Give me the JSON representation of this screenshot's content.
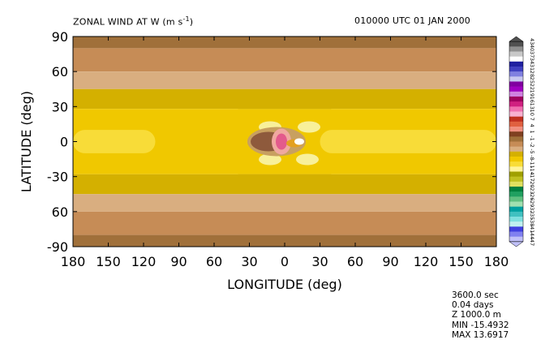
{
  "header": {
    "title": "ZONAL WIND AT W (m s",
    "title_exp": "-1",
    "title_close": ")",
    "time": "010000 UTC    01 JAN 2000"
  },
  "chart_data": {
    "type": "heatmap",
    "title": "ZONAL WIND AT W (m s-1)",
    "xlabel": "LONGITUDE (deg)",
    "ylabel": "LATITUDE (deg)",
    "xlim": [
      -180,
      180
    ],
    "ylim": [
      -90,
      90
    ],
    "xticks": [
      -180,
      -150,
      -120,
      -90,
      -60,
      -30,
      0,
      30,
      60,
      90,
      120,
      150,
      180
    ],
    "xtick_labels": [
      "180",
      "150",
      "120",
      "90",
      "60",
      "30",
      "0",
      "30",
      "60",
      "90",
      "120",
      "150",
      "180"
    ],
    "yticks": [
      90,
      60,
      30,
      0,
      -30,
      -60,
      -90
    ],
    "ytick_labels": [
      "90",
      "60",
      "30",
      "0",
      "-30",
      "60",
      "-90"
    ],
    "zonal_bands": [
      {
        "lat": [
          80,
          90
        ],
        "color": "#a0703a"
      },
      {
        "lat": [
          60,
          80
        ],
        "color": "#c68c56"
      },
      {
        "lat": [
          45,
          60
        ],
        "color": "#d9ae80"
      },
      {
        "lat": [
          28,
          45
        ],
        "color": "#d4b000"
      },
      {
        "lat": [
          -28,
          28
        ],
        "color": "#f0c800"
      },
      {
        "lat": [
          -45,
          -28
        ],
        "color": "#d4b000"
      },
      {
        "lat": [
          -60,
          -45
        ],
        "color": "#d9ae80"
      },
      {
        "lat": [
          -80,
          -60
        ],
        "color": "#c68c56"
      },
      {
        "lat": [
          -90,
          -80
        ],
        "color": "#a0703a"
      }
    ],
    "equatorial_band": {
      "color": "#f8dc38",
      "lat": [
        -10,
        10
      ],
      "lon_ranges": [
        [
          -180,
          -110
        ],
        [
          30,
          180
        ]
      ]
    },
    "feature": {
      "center_lon": 0,
      "center_lat": 0,
      "min": -15.4932,
      "max": 13.6917,
      "colors": [
        "#f8f09a",
        "#c8a060",
        "#8e5a3c",
        "#f0a8a0",
        "#e35a8c",
        "#e3a020"
      ]
    },
    "colorbar": {
      "colors": [
        "#505050",
        "#909090",
        "#c8c8c8",
        "#ffffff",
        "#2020a0",
        "#4040c0",
        "#8080e0",
        "#c8c8f0",
        "#8000a0",
        "#a000c0",
        "#d080e0",
        "#a00060",
        "#d02080",
        "#f070b0",
        "#f8b0d0",
        "#c03020",
        "#e06040",
        "#f09080",
        "#804020",
        "#a0703a",
        "#c68c56",
        "#d9ae80",
        "#d4b000",
        "#f0c800",
        "#f8dc38",
        "#fff49c",
        "#a0a000",
        "#c0c020",
        "#e0e060",
        "#008040",
        "#20a060",
        "#60c080",
        "#a0e0b0",
        "#00a0a0",
        "#40c0c0",
        "#80e0e0",
        "#c0f0f0",
        "#4040e0",
        "#8080f0",
        "#c0c0f8"
      ],
      "labels": [
        "43",
        "40",
        "37",
        "34",
        "31",
        "28",
        "25",
        "22",
        "19",
        "16",
        "13",
        "10",
        "7",
        "4",
        "1",
        "-1",
        "-2",
        "-5",
        "-8",
        "-11",
        "-14",
        "-17",
        "-20",
        "-23",
        "-26",
        "-29",
        "-32",
        "-35",
        "-38",
        "-41",
        "-44",
        "-47"
      ]
    }
  },
  "info": {
    "time_sec": "3600.0 sec",
    "time_days": "0.04 days",
    "level": "Z    1000.0 m",
    "min": "MIN  -15.4932",
    "max": "MAX  13.6917"
  }
}
